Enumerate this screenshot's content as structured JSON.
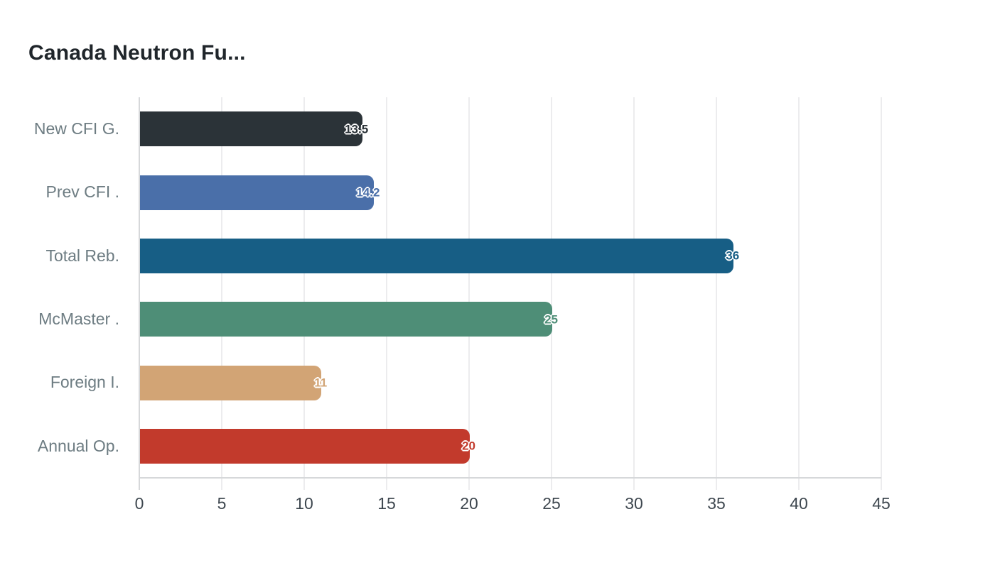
{
  "chart_data": {
    "type": "bar",
    "orientation": "horizontal",
    "title": "Canada Neutron Fu...",
    "categories": [
      "New CFI G.",
      "Prev CFI .",
      "Total Reb.",
      "McMaster .",
      "Foreign I.",
      "Annual Op."
    ],
    "values": [
      13.5,
      14.2,
      36,
      25,
      11,
      20
    ],
    "value_labels": [
      "13.5",
      "14.2",
      "36",
      "25",
      "11",
      "20"
    ],
    "bar_colors": [
      "#2b3338",
      "#4a6fa9",
      "#175e85",
      "#4e8e77",
      "#d2a475",
      "#c23a2c"
    ],
    "xlabel": "",
    "ylabel": "",
    "xlim": [
      0,
      45
    ],
    "xticks": [
      0,
      5,
      10,
      15,
      20,
      25,
      30,
      35,
      40,
      45
    ],
    "grid": "vertical-gridlines-with-ticks-below-axis",
    "legend": "none",
    "colors": {
      "title": "#20262b",
      "category_label": "#6d7c82",
      "tick_label": "#3e474f",
      "gridline": "#ececee",
      "axis_line": "#d6d8da",
      "background": "#ffffff"
    }
  }
}
